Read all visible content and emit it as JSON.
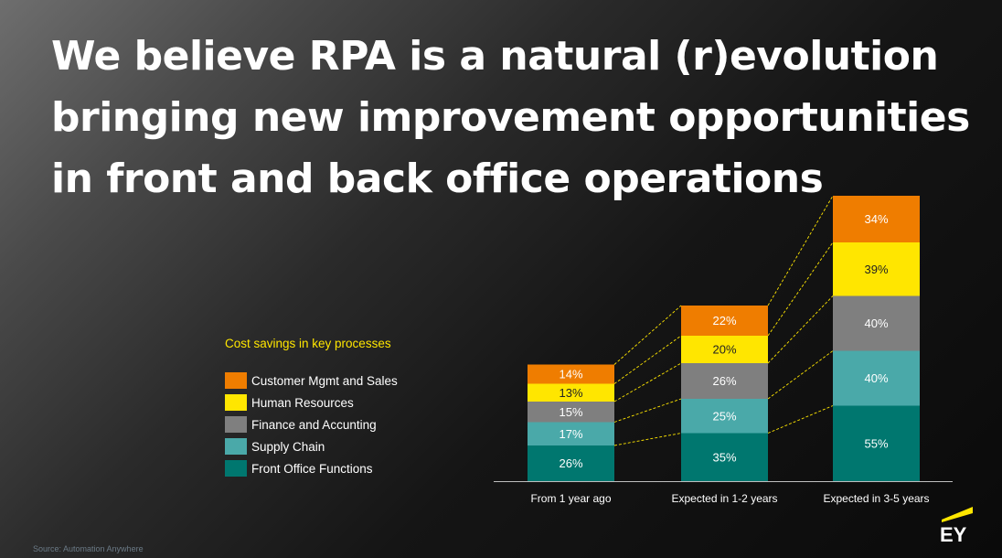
{
  "title_lines": [
    "We believe RPA is a natural (r)evolution",
    "bringing new improvement opportunities",
    "in front and back office operations"
  ],
  "legend_title": "Cost savings in key processes",
  "source": "Source: Automation Anywhere",
  "logo_text": "EY",
  "colors": {
    "accent": "#ffe600",
    "customer": "#ef7d00",
    "hr": "#ffe600",
    "finance": "#7f7f7f",
    "supply": "#4aa9a9",
    "front": "#00776f"
  },
  "chart_data": {
    "type": "bar",
    "stacked": true,
    "categories": [
      "From 1 year ago",
      "Expected in 1-2 years",
      "Expected in 3-5 years"
    ],
    "series": [
      {
        "name": "Front Office Functions",
        "color": "#00776f",
        "values": [
          26,
          35,
          55
        ],
        "labels": [
          "26%",
          "35%",
          "55%"
        ]
      },
      {
        "name": "Supply Chain",
        "color": "#4aa9a9",
        "values": [
          17,
          25,
          40
        ],
        "labels": [
          "17%",
          "25%",
          "40%"
        ]
      },
      {
        "name": "Finance and Accunting",
        "color": "#7f7f7f",
        "values": [
          15,
          26,
          40
        ],
        "labels": [
          "15%",
          "26%",
          "40%"
        ]
      },
      {
        "name": "Human Resources",
        "color": "#ffe600",
        "values": [
          13,
          20,
          39
        ],
        "labels": [
          "13%",
          "20%",
          "39%"
        ]
      },
      {
        "name": "Customer Mgmt and Sales",
        "color": "#ef7d00",
        "values": [
          14,
          22,
          34
        ],
        "labels": [
          "14%",
          "22%",
          "34%"
        ]
      }
    ],
    "legend_order": [
      "Customer Mgmt and Sales",
      "Human Resources",
      "Finance and Accunting",
      "Supply Chain",
      "Front Office Functions"
    ],
    "connector_lines": true,
    "grid": false,
    "legend_position": "left"
  }
}
